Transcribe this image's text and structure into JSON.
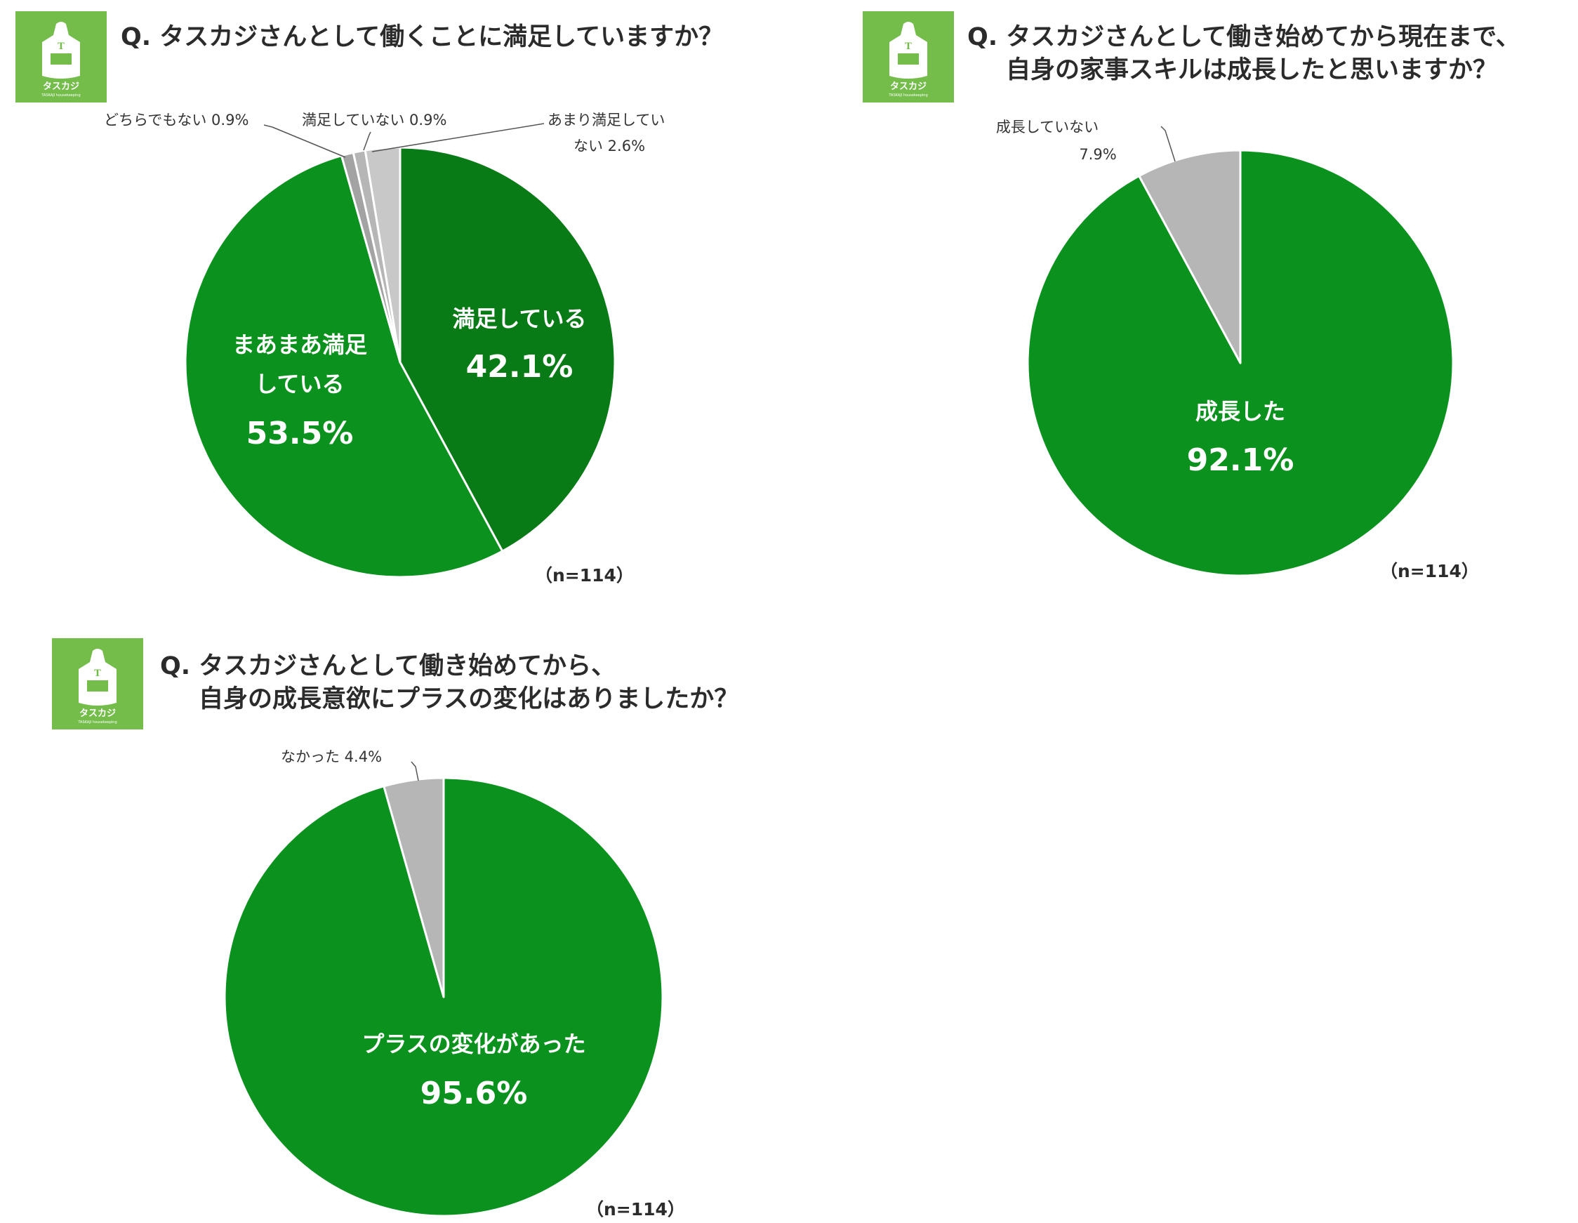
{
  "colors": {
    "dark_green": "#087b17",
    "green": "#0b921e",
    "gray": "#b6b6b6",
    "gray_mid": "#a3a3a3",
    "gray_light": "#c8c8c8",
    "logo_bg": "#74bd4b",
    "leader": "#555555"
  },
  "logo": {
    "letter": "T",
    "brand": "タスカジ",
    "sub": "TASKAJI housekeeping",
    "icon": "apron-icon"
  },
  "chart_data": [
    {
      "type": "pie",
      "title_line1": "Q. タスカジさんとして働くことに満足していますか？",
      "title_line2": "",
      "n_label": "（n=114）",
      "slices": [
        {
          "label": "満足している",
          "value": 42.1,
          "value_text": "42.1%",
          "color": "#087b17"
        },
        {
          "label": "まあまあ満足している",
          "label_lines": [
            "まあまあ満足",
            "している"
          ],
          "value": 53.5,
          "value_text": "53.5%",
          "color": "#0b921e"
        },
        {
          "label": "どちらでもない",
          "value": 0.9,
          "value_text": "0.9%",
          "color": "#a3a3a3",
          "callout": "どちらでもない  0.9%"
        },
        {
          "label": "満足していない",
          "value": 0.9,
          "value_text": "0.9%",
          "color": "#b6b6b6",
          "callout": "満足していない  0.9%"
        },
        {
          "label": "あまり満足していない",
          "value": 2.6,
          "value_text": "2.6%",
          "color": "#c8c8c8",
          "callout_line1": "あまり満足してい",
          "callout_line2": "ない  2.6%"
        }
      ]
    },
    {
      "type": "pie",
      "title_line1": "Q. タスカジさんとして働き始めてから現在まで、",
      "title_line2": "自身の家事スキルは成長したと思いますか？",
      "n_label": "（n=114）",
      "slices": [
        {
          "label": "成長した",
          "value": 92.1,
          "value_text": "92.1%",
          "color": "#0b921e"
        },
        {
          "label": "成長していない",
          "value": 7.9,
          "value_text": "7.9%",
          "color": "#b6b6b6",
          "callout_line1": "成長していない",
          "callout_line2": "7.9%"
        }
      ]
    },
    {
      "type": "pie",
      "title_line1": "Q. タスカジさんとして働き始めてから、",
      "title_line2": "自身の成長意欲にプラスの変化はありましたか？",
      "n_label": "（n=114）",
      "slices": [
        {
          "label": "プラスの変化があった",
          "value": 95.6,
          "value_text": "95.6%",
          "color": "#0b921e"
        },
        {
          "label": "なかった",
          "value": 4.4,
          "value_text": "4.4%",
          "color": "#b6b6b6",
          "callout": "なかった  4.4%"
        }
      ]
    }
  ]
}
